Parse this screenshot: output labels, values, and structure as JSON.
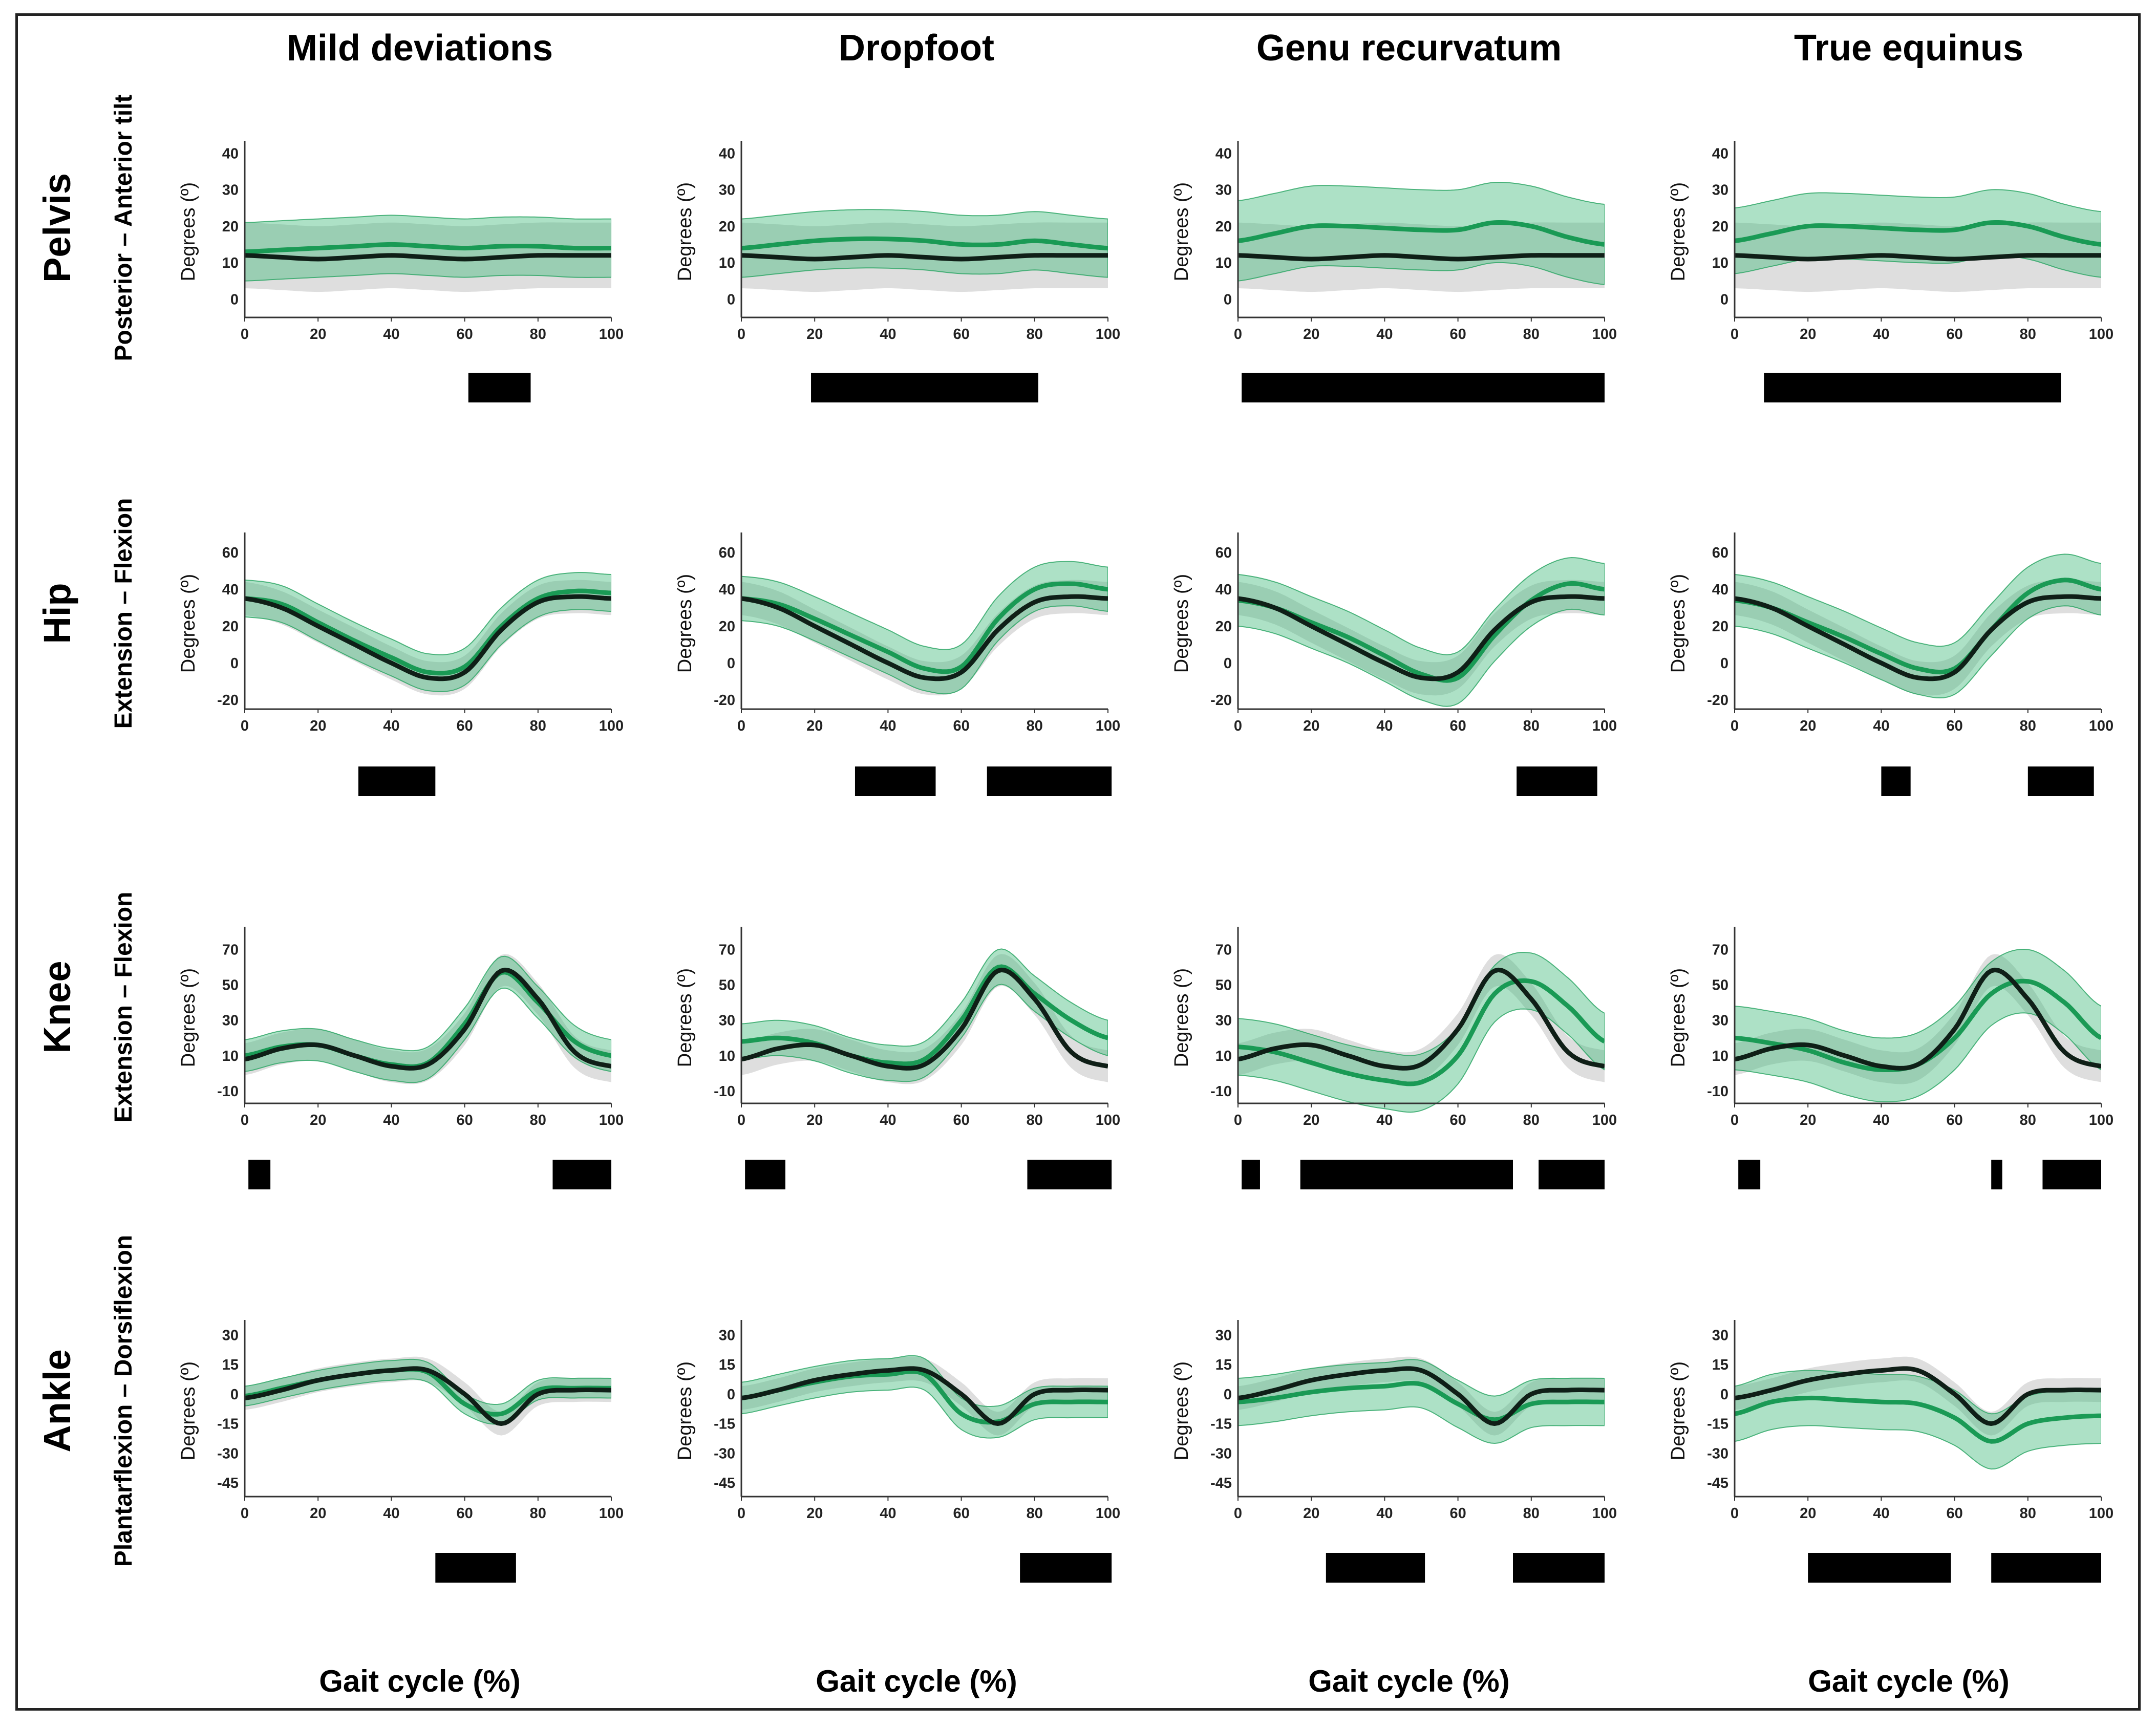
{
  "figure": {
    "x_axis_title": "Gait cycle (%)",
    "y_axis_label": "Degrees (º)",
    "colors": {
      "reference_line": "#0f1f17",
      "reference_band": "#d3d3d3",
      "group_line": "#1a9a55",
      "group_band": "#3cb878",
      "group_band_edge": "#28a462",
      "significance_bar": "#000000"
    }
  },
  "columns": [
    "Mild deviations",
    "Dropfoot",
    "Genu recurvatum",
    "True equinus"
  ],
  "rows": [
    {
      "joint": "Pelvis",
      "motion": "Posterior – Anterior tilt",
      "ylim": [
        -5,
        42
      ],
      "yticks": [
        0,
        10,
        20,
        30,
        40
      ]
    },
    {
      "joint": "Hip",
      "motion": "Extension – Flexion",
      "ylim": [
        -25,
        68
      ],
      "yticks": [
        -20,
        0,
        20,
        40,
        60
      ]
    },
    {
      "joint": "Knee",
      "motion": "Extension – Flexion",
      "ylim": [
        -17,
        80
      ],
      "yticks": [
        -10,
        10,
        30,
        50,
        70
      ]
    },
    {
      "joint": "Ankle",
      "motion": "Plantarflexion – Dorsiflexion",
      "ylim": [
        -52,
        35
      ],
      "yticks": [
        -45,
        -30,
        -15,
        0,
        15,
        30
      ]
    }
  ],
  "chart_data": {
    "type": "line",
    "title": "",
    "xlabel": "Gait cycle (%)",
    "ylabel": "Degrees (º)",
    "xlim": [
      0,
      100
    ],
    "xticks": [
      0,
      20,
      40,
      60,
      80,
      100
    ],
    "legend": "none",
    "series_note": "black line and grey band = reference mean ± SD; green line and green band = patient group mean ± SD; black bars = significant differences along the gait cycle",
    "x_knots": [
      0,
      10,
      20,
      30,
      40,
      50,
      60,
      70,
      80,
      90,
      100
    ],
    "reference": [
      {
        "joint": "Pelvis",
        "mean": [
          12,
          11.5,
          11,
          11.5,
          12,
          11.5,
          11,
          11.5,
          12,
          12,
          12
        ],
        "sd": [
          9,
          9,
          9,
          9,
          9,
          9,
          9,
          9,
          9,
          9,
          9
        ]
      },
      {
        "joint": "Hip",
        "mean": [
          35,
          30,
          20,
          10,
          0,
          -8,
          -5,
          18,
          33,
          36,
          35
        ],
        "sd": [
          9,
          9,
          9,
          9,
          9,
          9,
          9,
          9,
          9,
          9,
          9
        ]
      },
      {
        "joint": "Knee",
        "mean": [
          8,
          14,
          16,
          10,
          4,
          5,
          25,
          58,
          42,
          12,
          4
        ],
        "sd": [
          9,
          9,
          9,
          9,
          9,
          9,
          9,
          9,
          9,
          9,
          9
        ]
      },
      {
        "joint": "Ankle",
        "mean": [
          -2,
          2,
          7,
          10,
          12,
          12,
          0,
          -15,
          0,
          2,
          2
        ],
        "sd": [
          6,
          6,
          6,
          6,
          6,
          6,
          6,
          6,
          6,
          6,
          6
        ]
      }
    ],
    "panels": [
      {
        "column": "Mild deviations",
        "joint": "Pelvis",
        "mean": [
          13,
          13.5,
          14,
          14.5,
          15,
          14.5,
          14,
          14.5,
          14.5,
          14,
          14
        ],
        "sd": [
          8,
          8,
          8,
          8,
          8,
          8,
          8,
          8,
          8,
          8,
          8
        ],
        "significance": [
          [
            61,
            78
          ]
        ]
      },
      {
        "column": "Mild deviations",
        "joint": "Hip",
        "mean": [
          35,
          32,
          22,
          12,
          3,
          -5,
          -2,
          20,
          35,
          39,
          38
        ],
        "sd": [
          10,
          10,
          10,
          10,
          10,
          10,
          10,
          10,
          10,
          10,
          10
        ],
        "significance": [
          [
            31,
            52
          ]
        ]
      },
      {
        "column": "Mild deviations",
        "joint": "Knee",
        "mean": [
          10,
          15,
          16,
          10,
          5,
          6,
          28,
          57,
          40,
          18,
          10
        ],
        "sd": [
          9,
          9,
          9,
          9,
          9,
          9,
          9,
          9,
          9,
          9,
          9
        ],
        "significance": [
          [
            1,
            7
          ],
          [
            84,
            100
          ]
        ]
      },
      {
        "column": "Mild deviations",
        "joint": "Ankle",
        "mean": [
          -1,
          3,
          7,
          10,
          12,
          11,
          -5,
          -10,
          2,
          3,
          3
        ],
        "sd": [
          5,
          5,
          5,
          5,
          5,
          5,
          5,
          5,
          5,
          5,
          5
        ],
        "significance": [
          [
            52,
            74
          ]
        ]
      },
      {
        "column": "Dropfoot",
        "joint": "Pelvis",
        "mean": [
          14,
          15,
          16,
          16.5,
          16.5,
          16,
          15,
          15,
          16,
          15,
          14
        ],
        "sd": [
          8,
          8,
          8,
          8,
          8,
          8,
          8,
          8,
          8,
          8,
          8
        ],
        "significance": [
          [
            19,
            81
          ]
        ]
      },
      {
        "column": "Dropfoot",
        "joint": "Hip",
        "mean": [
          35,
          32,
          24,
          15,
          6,
          -3,
          -2,
          24,
          40,
          43,
          40
        ],
        "sd": [
          12,
          12,
          12,
          12,
          12,
          12,
          12,
          12,
          12,
          12,
          12
        ],
        "significance": [
          [
            31,
            53
          ],
          [
            67,
            101
          ]
        ]
      },
      {
        "column": "Dropfoot",
        "joint": "Knee",
        "mean": [
          18,
          20,
          17,
          10,
          6,
          8,
          30,
          60,
          45,
          30,
          20
        ],
        "sd": [
          10,
          10,
          10,
          10,
          10,
          10,
          10,
          10,
          10,
          10,
          10
        ],
        "significance": [
          [
            1,
            12
          ],
          [
            78,
            101
          ]
        ]
      },
      {
        "column": "Dropfoot",
        "joint": "Ankle",
        "mean": [
          -2,
          2,
          6,
          9,
          10,
          10,
          -10,
          -14,
          -5,
          -4,
          -4
        ],
        "sd": [
          8,
          8,
          8,
          8,
          8,
          8,
          8,
          8,
          8,
          8,
          8
        ],
        "significance": [
          [
            76,
            101
          ]
        ]
      },
      {
        "column": "Genu recurvatum",
        "joint": "Pelvis",
        "mean": [
          16,
          18,
          20,
          20,
          19.5,
          19,
          19,
          21,
          20,
          17,
          15
        ],
        "sd": [
          11,
          11,
          11,
          11,
          11,
          11,
          11,
          11,
          11,
          11,
          11
        ],
        "significance": [
          [
            1,
            100
          ]
        ]
      },
      {
        "column": "Genu recurvatum",
        "joint": "Hip",
        "mean": [
          34,
          30,
          22,
          14,
          4,
          -6,
          -8,
          15,
          34,
          43,
          40
        ],
        "sd": [
          14,
          14,
          14,
          14,
          14,
          14,
          14,
          14,
          14,
          14,
          14
        ],
        "significance": [
          [
            76,
            98
          ]
        ]
      },
      {
        "column": "Genu recurvatum",
        "joint": "Knee",
        "mean": [
          15,
          12,
          6,
          0,
          -4,
          -5,
          10,
          45,
          52,
          38,
          18
        ],
        "sd": [
          16,
          16,
          16,
          16,
          16,
          16,
          16,
          16,
          16,
          16,
          16
        ],
        "significance": [
          [
            1,
            6
          ],
          [
            17,
            75
          ],
          [
            82,
            100
          ]
        ]
      },
      {
        "column": "Genu recurvatum",
        "joint": "Ankle",
        "mean": [
          -4,
          -2,
          1,
          3,
          4,
          5,
          -5,
          -13,
          -5,
          -4,
          -4
        ],
        "sd": [
          12,
          12,
          12,
          12,
          12,
          12,
          12,
          12,
          12,
          12,
          12
        ],
        "significance": [
          [
            24,
            51
          ],
          [
            75,
            100
          ]
        ]
      },
      {
        "column": "True equinus",
        "joint": "Pelvis",
        "mean": [
          16,
          18,
          20,
          20,
          19.5,
          19,
          19,
          21,
          20,
          17,
          15
        ],
        "sd": [
          9,
          9,
          9,
          9,
          9,
          9,
          9,
          9,
          9,
          9,
          9
        ],
        "significance": [
          [
            8,
            89
          ]
        ]
      },
      {
        "column": "True equinus",
        "joint": "Hip",
        "mean": [
          34,
          30,
          22,
          14,
          5,
          -3,
          -3,
          18,
          38,
          45,
          40
        ],
        "sd": [
          14,
          14,
          14,
          14,
          14,
          14,
          14,
          14,
          14,
          14,
          14
        ],
        "significance": [
          [
            40,
            48
          ],
          [
            80,
            98
          ]
        ]
      },
      {
        "column": "True equinus",
        "joint": "Knee",
        "mean": [
          20,
          17,
          13,
          6,
          2,
          5,
          20,
          45,
          52,
          40,
          20
        ],
        "sd": [
          18,
          18,
          18,
          18,
          18,
          18,
          18,
          18,
          18,
          18,
          18
        ],
        "significance": [
          [
            1,
            7
          ],
          [
            70,
            73
          ],
          [
            84,
            100
          ]
        ]
      },
      {
        "column": "True equinus",
        "joint": "Ankle",
        "mean": [
          -10,
          -4,
          -2,
          -3,
          -4,
          -5,
          -12,
          -24,
          -15,
          -12,
          -11
        ],
        "sd": [
          14,
          14,
          14,
          14,
          14,
          14,
          14,
          14,
          14,
          14,
          14
        ],
        "significance": [
          [
            20,
            59
          ],
          [
            70,
            100
          ]
        ]
      }
    ]
  }
}
